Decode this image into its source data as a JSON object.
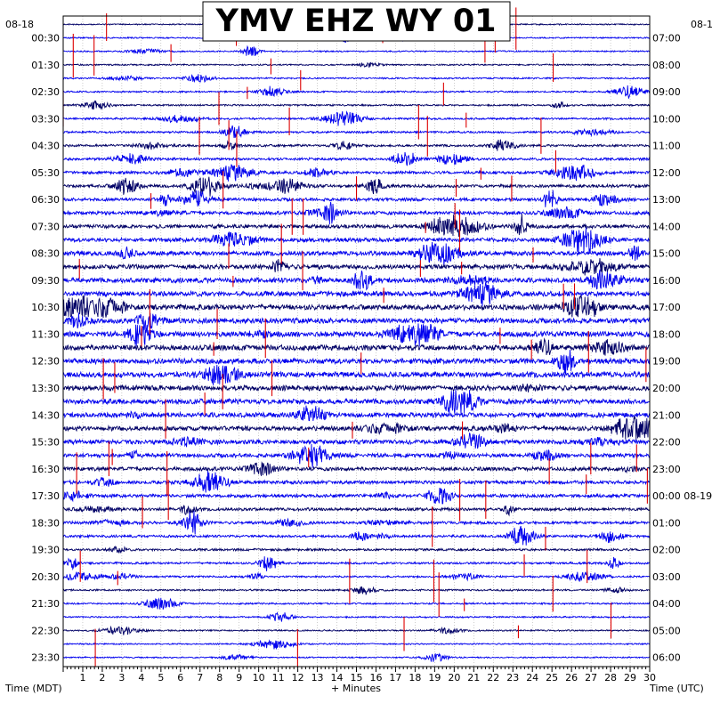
{
  "chart_data": {
    "type": "line",
    "title": "YMV EHZ WY 01",
    "xlabel": "+ Minutes",
    "left_axis_label": "Time (MDT)",
    "right_axis_label": "Time (UTC)",
    "left_date": "08-18",
    "right_date": "08-1",
    "right_date_change_label": "00:00 08-19",
    "x_ticks": [
      1,
      2,
      3,
      4,
      5,
      6,
      7,
      8,
      9,
      10,
      11,
      12,
      13,
      14,
      15,
      16,
      17,
      18,
      19,
      20,
      21,
      22,
      23,
      24,
      25,
      26,
      27,
      28,
      29,
      30
    ],
    "xlim": [
      0,
      30
    ],
    "trace_count": 48,
    "trace_interval_minutes": 30,
    "left_time_labels": [
      "00:30",
      "01:30",
      "02:30",
      "03:30",
      "04:30",
      "05:30",
      "06:30",
      "07:30",
      "08:30",
      "09:30",
      "10:30",
      "11:30",
      "12:30",
      "13:30",
      "14:30",
      "15:30",
      "16:30",
      "17:30",
      "18:30",
      "19:30",
      "20:30",
      "21:30",
      "22:30",
      "23:30"
    ],
    "right_time_labels": [
      "07:00",
      "08:00",
      "09:00",
      "10:00",
      "11:00",
      "12:00",
      "13:00",
      "14:00",
      "15:00",
      "16:00",
      "17:00",
      "18:00",
      "19:00",
      "20:00",
      "21:00",
      "22:00",
      "23:00",
      "00:00 08-19",
      "01:00",
      "02:00",
      "03:00",
      "04:00",
      "05:00",
      "06:00"
    ],
    "colors": {
      "trace_dark": "#000066",
      "trace_blue": "#0000ee",
      "clipped": "#dd0000",
      "grid": "#999999"
    },
    "grid": true
  }
}
